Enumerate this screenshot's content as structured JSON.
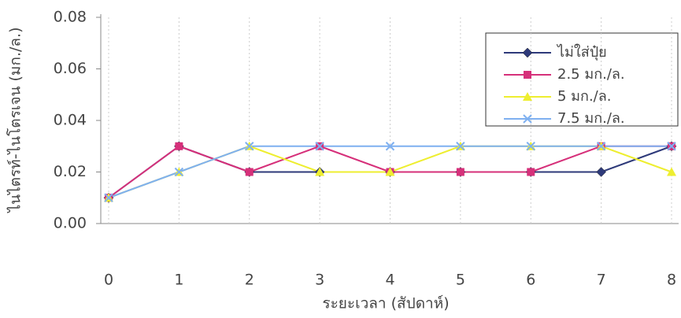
{
  "chart_data": {
    "type": "line",
    "x_label": "ระยะเวลา (สัปดาห์)",
    "y_label": "ไนไตรท์-ไนโตรเจน (มก./ล.)",
    "x": [
      0,
      1,
      2,
      3,
      4,
      5,
      6,
      7,
      8
    ],
    "xlim": [
      0,
      8
    ],
    "xticks": [
      0,
      1,
      2,
      3,
      4,
      5,
      6,
      7,
      8
    ],
    "ylim": [
      0,
      0.08
    ],
    "yticks": [
      {
        "value": 0,
        "label": "0.00"
      },
      {
        "value": 0.02,
        "label": "0.02"
      },
      {
        "value": 0.04,
        "label": "0.04"
      },
      {
        "value": 0.06,
        "label": "0.06"
      },
      {
        "value": 0.08,
        "label": "0.08"
      }
    ],
    "grid": "x",
    "legend": "top-right",
    "series": [
      {
        "name": "ไม่ใส่ปุ๋ย",
        "color": "#2e3a7a",
        "marker": "diamond",
        "values": [
          0.01,
          0.03,
          0.02,
          0.02,
          0.02,
          0.02,
          0.02,
          0.02,
          0.03
        ]
      },
      {
        "name": "2.5 มก./ล.",
        "color": "#d6307a",
        "marker": "square",
        "values": [
          0.01,
          0.03,
          0.02,
          0.03,
          0.02,
          0.02,
          0.02,
          0.03,
          0.03
        ]
      },
      {
        "name": "5 มก./ล.",
        "color": "#eeee30",
        "marker": "triangle",
        "values": [
          0.01,
          0.02,
          0.03,
          0.02,
          0.02,
          0.03,
          0.03,
          0.03,
          0.02
        ]
      },
      {
        "name": "7.5 มก./ล.",
        "color": "#7fb0f0",
        "marker": "x",
        "values": [
          0.01,
          0.02,
          0.03,
          0.03,
          0.03,
          0.03,
          0.03,
          0.03,
          0.03
        ]
      }
    ]
  }
}
